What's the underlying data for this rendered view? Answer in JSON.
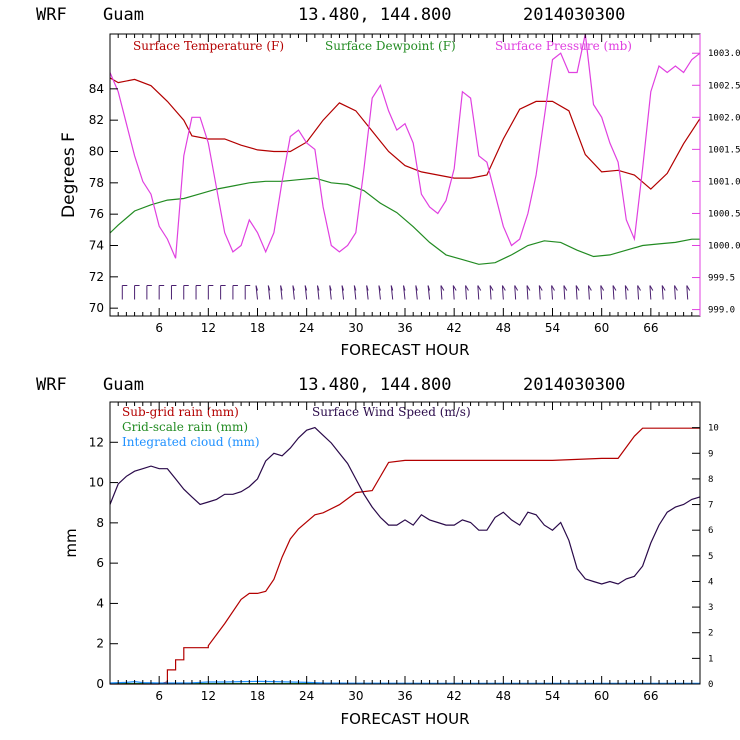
{
  "colors": {
    "temperature": "#b30000",
    "dewpoint": "#228b22",
    "pressure": "#e040e0",
    "subgrid_rain": "#b30000",
    "grid_rain": "#228b22",
    "cloud": "#1e90ff",
    "wind": "#2a0a4a"
  },
  "chart_data": [
    {
      "type": "line",
      "header": {
        "model": "WRF",
        "location": "Guam",
        "coords": "13.480, 144.800",
        "init": "2014030300"
      },
      "xlabel": "FORECAST HOUR",
      "ylabel": "Degrees F",
      "xlim": [
        0,
        72
      ],
      "ylim": [
        69.5,
        87.5
      ],
      "xticks": [
        6,
        12,
        18,
        24,
        30,
        36,
        42,
        48,
        54,
        60,
        66
      ],
      "yticks": [
        70,
        72,
        74,
        76,
        78,
        80,
        82,
        84
      ],
      "y2lim": [
        998.9,
        1003.3
      ],
      "y2ticks": [
        "999.0",
        "999.5",
        "1000.0",
        "1000.5",
        "1001.0",
        "1001.5",
        "1002.0",
        "1002.5",
        "1003.0"
      ],
      "legend": [
        "Surface Temperature (F)",
        "Surface Dewpoint (F)",
        "Surface Pressure (mb)"
      ],
      "series": [
        {
          "name": "Surface Temperature (F)",
          "axis": "left",
          "x": [
            0,
            1,
            3,
            5,
            7,
            9,
            10,
            12,
            14,
            16,
            18,
            20,
            22,
            24,
            26,
            28,
            30,
            32,
            34,
            36,
            38,
            40,
            42,
            44,
            46,
            48,
            50,
            52,
            54,
            56,
            58,
            60,
            62,
            64,
            66,
            68,
            70,
            72
          ],
          "values": [
            84.7,
            84.4,
            84.6,
            84.2,
            83.2,
            82.0,
            81.0,
            80.8,
            80.8,
            80.4,
            80.1,
            80.0,
            80.0,
            80.6,
            82.0,
            83.1,
            82.6,
            81.3,
            80.0,
            79.1,
            78.7,
            78.5,
            78.3,
            78.3,
            78.5,
            80.8,
            82.7,
            83.2,
            83.2,
            82.6,
            79.8,
            78.7,
            78.8,
            78.5,
            77.6,
            78.6,
            80.5,
            82.1
          ]
        },
        {
          "name": "Surface Dewpoint (F)",
          "axis": "left",
          "x": [
            0,
            1,
            3,
            5,
            7,
            9,
            11,
            13,
            15,
            17,
            19,
            21,
            23,
            25,
            27,
            29,
            31,
            33,
            35,
            37,
            39,
            41,
            43,
            45,
            47,
            49,
            51,
            53,
            55,
            57,
            59,
            61,
            63,
            65,
            67,
            69,
            71,
            72
          ],
          "values": [
            74.8,
            75.3,
            76.2,
            76.6,
            76.9,
            77.0,
            77.3,
            77.6,
            77.8,
            78.0,
            78.1,
            78.1,
            78.2,
            78.3,
            78.0,
            77.9,
            77.5,
            76.7,
            76.1,
            75.2,
            74.2,
            73.4,
            73.1,
            72.8,
            72.9,
            73.4,
            74.0,
            74.3,
            74.2,
            73.7,
            73.3,
            73.4,
            73.7,
            74.0,
            74.1,
            74.2,
            74.4,
            74.4
          ]
        },
        {
          "name": "Surface Pressure (mb)",
          "axis": "right",
          "x": [
            0,
            1,
            2,
            3,
            4,
            5,
            6,
            7,
            8,
            9,
            10,
            11,
            12,
            13,
            14,
            15,
            16,
            17,
            18,
            19,
            20,
            21,
            22,
            23,
            24,
            25,
            26,
            27,
            28,
            29,
            30,
            31,
            32,
            33,
            34,
            35,
            36,
            37,
            38,
            39,
            40,
            41,
            42,
            43,
            44,
            45,
            46,
            47,
            48,
            49,
            50,
            51,
            52,
            53,
            54,
            55,
            56,
            57,
            58,
            59,
            60,
            61,
            62,
            63,
            64,
            65,
            66,
            67,
            68,
            69,
            70,
            71,
            72
          ],
          "values": [
            1002.7,
            1002.4,
            1001.9,
            1001.4,
            1001.0,
            1000.8,
            1000.3,
            1000.1,
            999.8,
            1001.4,
            1002.0,
            1002.0,
            1001.6,
            1000.9,
            1000.2,
            999.9,
            1000.0,
            1000.4,
            1000.2,
            999.9,
            1000.2,
            1001.0,
            1001.7,
            1001.8,
            1001.6,
            1001.5,
            1000.6,
            1000.0,
            999.9,
            1000.0,
            1000.2,
            1001.2,
            1002.3,
            1002.5,
            1002.1,
            1001.8,
            1001.9,
            1001.6,
            1000.8,
            1000.6,
            1000.5,
            1000.7,
            1001.2,
            1002.4,
            1002.3,
            1001.4,
            1001.3,
            1000.8,
            1000.3,
            1000.0,
            1000.1,
            1000.5,
            1001.1,
            1002.0,
            1002.9,
            1003.0,
            1002.7,
            1002.7,
            1003.3,
            1002.2,
            1002.0,
            1001.6,
            1001.3,
            1000.4,
            1000.1,
            1001.2,
            1002.4,
            1002.8,
            1002.7,
            1002.8,
            1002.7,
            1002.9,
            1003.0
          ]
        }
      ],
      "wind_barbs": {
        "hours": [
          0,
          72
        ],
        "interval": 1.5,
        "y": 71
      }
    },
    {
      "type": "line",
      "header": {
        "model": "WRF",
        "location": "Guam",
        "coords": "13.480, 144.800",
        "init": "2014030300"
      },
      "xlabel": "FORECAST HOUR",
      "ylabel": "mm",
      "xlim": [
        0,
        72
      ],
      "ylim": [
        0,
        14
      ],
      "xticks": [
        6,
        12,
        18,
        24,
        30,
        36,
        42,
        48,
        54,
        60,
        66
      ],
      "yticks": [
        0,
        2,
        4,
        6,
        8,
        10,
        12
      ],
      "y2lim": [
        0,
        11
      ],
      "y2ticks": [
        0,
        1,
        2,
        3,
        4,
        5,
        6,
        7,
        8,
        9,
        10
      ],
      "legend": [
        "Sub-grid rain (mm)",
        "Grid-scale rain (mm)",
        "Integrated cloud (mm)",
        "Surface Wind Speed (m/s)"
      ],
      "series": [
        {
          "name": "Sub-grid rain (mm)",
          "axis": "left",
          "x": [
            0,
            6,
            7,
            7,
            8,
            8,
            9,
            9,
            12,
            12,
            14,
            16,
            17,
            18,
            19,
            20,
            21,
            22,
            23,
            25,
            26,
            28,
            30,
            32,
            33,
            34,
            36,
            42,
            48,
            54,
            60,
            62,
            64,
            65,
            72
          ],
          "values": [
            0,
            0,
            0.1,
            0.7,
            0.7,
            1.2,
            1.2,
            1.8,
            1.8,
            1.9,
            3.0,
            4.2,
            4.5,
            4.5,
            4.6,
            5.2,
            6.3,
            7.2,
            7.7,
            8.4,
            8.5,
            8.9,
            9.5,
            9.6,
            10.3,
            11.0,
            11.1,
            11.1,
            11.1,
            11.1,
            11.2,
            11.2,
            12.3,
            12.7,
            12.7
          ]
        },
        {
          "name": "Grid-scale rain (mm)",
          "axis": "left",
          "x": [
            0,
            72
          ],
          "values": [
            0.02,
            0.02
          ]
        },
        {
          "name": "Integrated cloud (mm)",
          "axis": "left",
          "x": [
            0,
            2,
            3,
            4,
            6,
            8,
            10,
            12,
            14,
            16,
            18,
            20,
            22,
            24,
            26,
            30,
            40,
            50,
            60,
            72
          ],
          "values": [
            0.05,
            0.08,
            0.12,
            0.07,
            0.05,
            0.05,
            0.06,
            0.1,
            0.1,
            0.12,
            0.13,
            0.12,
            0.1,
            0.08,
            0.05,
            0.04,
            0.03,
            0.03,
            0.03,
            0.03
          ]
        },
        {
          "name": "Surface Wind Speed (m/s)",
          "axis": "right",
          "x": [
            0,
            1,
            2,
            3,
            4,
            5,
            6,
            7,
            8,
            9,
            10,
            11,
            12,
            13,
            14,
            15,
            16,
            17,
            18,
            19,
            20,
            21,
            22,
            23,
            24,
            25,
            26,
            27,
            28,
            29,
            30,
            31,
            32,
            33,
            34,
            35,
            36,
            37,
            38,
            39,
            40,
            41,
            42,
            43,
            44,
            45,
            46,
            47,
            48,
            49,
            50,
            51,
            52,
            53,
            54,
            55,
            56,
            57,
            58,
            59,
            60,
            61,
            62,
            63,
            64,
            65,
            66,
            67,
            68,
            69,
            70,
            71,
            72
          ],
          "values": [
            7.0,
            7.8,
            8.1,
            8.3,
            8.4,
            8.5,
            8.4,
            8.4,
            8.0,
            7.6,
            7.3,
            7.0,
            7.1,
            7.2,
            7.4,
            7.4,
            7.5,
            7.7,
            8.0,
            8.7,
            9.0,
            8.9,
            9.2,
            9.6,
            9.9,
            10.0,
            9.7,
            9.4,
            9.0,
            8.6,
            8.0,
            7.4,
            6.9,
            6.5,
            6.2,
            6.2,
            6.4,
            6.2,
            6.6,
            6.4,
            6.3,
            6.2,
            6.2,
            6.4,
            6.3,
            6.0,
            6.0,
            6.5,
            6.7,
            6.4,
            6.2,
            6.7,
            6.6,
            6.2,
            6.0,
            6.3,
            5.6,
            4.5,
            4.1,
            4.0,
            3.9,
            4.0,
            3.9,
            4.1,
            4.2,
            4.6,
            5.5,
            6.2,
            6.7,
            6.9,
            7.0,
            7.2,
            7.3
          ]
        }
      ]
    }
  ]
}
